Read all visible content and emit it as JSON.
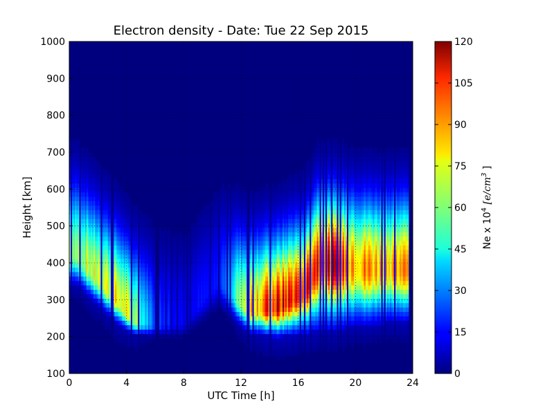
{
  "chart_data": {
    "type": "heatmap",
    "title": "Electron density - Date: Tue 22 Sep 2015",
    "xlabel": "UTC Time [h]",
    "ylabel": "Height [km]",
    "xlim": [
      0,
      24
    ],
    "ylim": [
      100,
      1000
    ],
    "x_ticks": [
      "0",
      "4",
      "8",
      "12",
      "16",
      "20",
      "24"
    ],
    "y_ticks": [
      "100",
      "200",
      "300",
      "400",
      "500",
      "600",
      "700",
      "800",
      "900",
      "1000"
    ],
    "grid": true,
    "colormap": "jet",
    "colorbar": {
      "label": "Ne x 10^4 [e/cm^3]",
      "range": [
        0,
        120
      ],
      "ticks": [
        "0",
        "15",
        "30",
        "45",
        "60",
        "75",
        "90",
        "105",
        "120"
      ]
    },
    "data_extent_hours": [
      0,
      23.7
    ],
    "density_features": [
      {
        "time_h": 0.5,
        "peak_height_km": 420,
        "peak_ne": 70,
        "bottom_km": 340
      },
      {
        "time_h": 3.5,
        "peak_height_km": 290,
        "peak_ne": 80,
        "bottom_km": 230
      },
      {
        "time_h": 4.5,
        "peak_height_km": 240,
        "peak_ne": 68,
        "bottom_km": 205
      },
      {
        "time_h": 6.0,
        "peak_height_km": 230,
        "peak_ne": 25,
        "bottom_km": 200
      },
      {
        "time_h": 8.0,
        "peak_height_km": 240,
        "peak_ne": 15,
        "bottom_km": 200
      },
      {
        "time_h": 10.5,
        "peak_height_km": 350,
        "peak_ne": 18,
        "bottom_km": 280
      },
      {
        "time_h": 12.5,
        "peak_height_km": 270,
        "peak_ne": 85,
        "bottom_km": 210
      },
      {
        "time_h": 14.5,
        "peak_height_km": 275,
        "peak_ne": 110,
        "bottom_km": 200
      },
      {
        "time_h": 16.5,
        "peak_height_km": 320,
        "peak_ne": 112,
        "bottom_km": 210
      },
      {
        "time_h": 17.5,
        "peak_height_km": 400,
        "peak_ne": 118,
        "bottom_km": 220
      },
      {
        "time_h": 20.5,
        "peak_height_km": 380,
        "peak_ne": 95,
        "bottom_km": 230
      },
      {
        "time_h": 22.5,
        "peak_height_km": 380,
        "peak_ne": 92,
        "bottom_km": 240
      }
    ]
  }
}
